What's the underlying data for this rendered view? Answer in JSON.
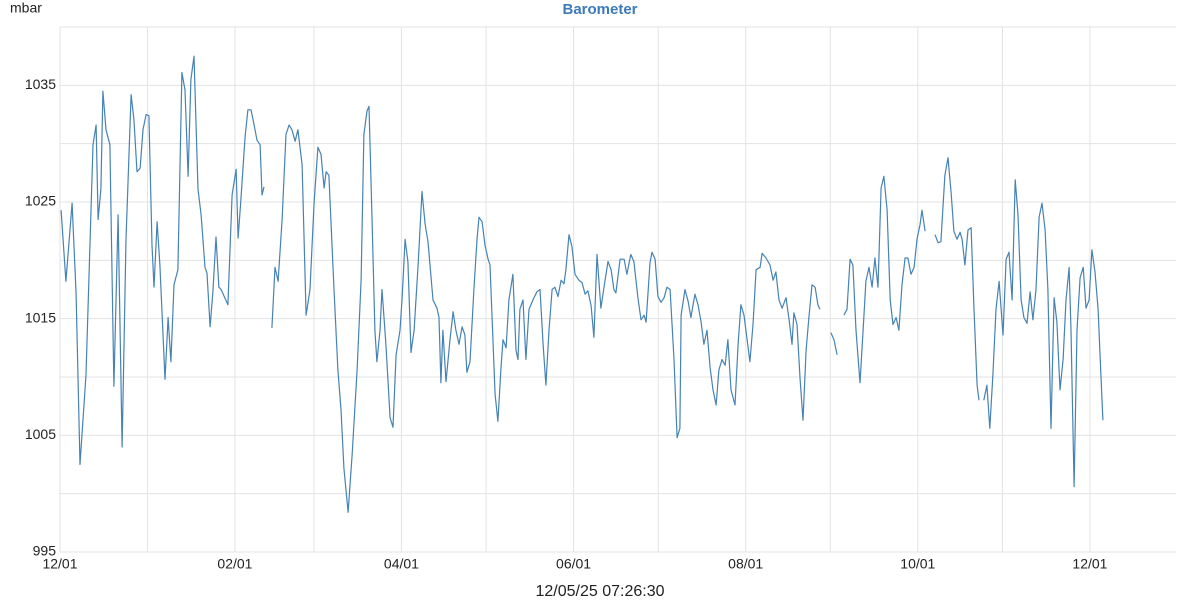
{
  "chart_data": {
    "type": "line",
    "title": "Barometer",
    "y_label": "mbar",
    "timestamp": "12/05/25 07:26:30",
    "color": "#4682b4",
    "grid": true,
    "xlim": [
      0,
      395.5
    ],
    "ylim": [
      995,
      1040
    ],
    "yticks": [
      995,
      1005,
      1015,
      1025,
      1035
    ],
    "minor_yticks": [
      1000,
      1010,
      1020,
      1030,
      1040
    ],
    "xticks": [
      {
        "value": 0,
        "label": "12/01"
      },
      {
        "value": 62,
        "label": "02/01"
      },
      {
        "value": 121,
        "label": "04/01"
      },
      {
        "value": 182,
        "label": "06/01"
      },
      {
        "value": 243,
        "label": "08/01"
      },
      {
        "value": 304,
        "label": "10/01"
      },
      {
        "value": 365,
        "label": "12/01"
      }
    ],
    "minor_xticks": [
      31,
      90,
      151,
      212,
      273,
      334
    ],
    "x": [
      0.4,
      2.1,
      4.3,
      5.7,
      7.1,
      9.2,
      11.7,
      12.8,
      13.5,
      14.5,
      15.2,
      16.3,
      17.7,
      19.1,
      20.6,
      22.0,
      23.4,
      25.2,
      26.2,
      27.3,
      28.4,
      29.4,
      30.5,
      31.5,
      32.6,
      33.3,
      34.4,
      35.4,
      37.2,
      38.3,
      39.3,
      40.4,
      41.8,
      43.2,
      44.3,
      45.4,
      46.4,
      47.5,
      48.9,
      50.0,
      51.4,
      52.1,
      53.2,
      54.2,
      55.3,
      56.3,
      57.1,
      59.5,
      61.0,
      62.4,
      63.1,
      64.1,
      65.6,
      66.6,
      67.7,
      68.8,
      69.8,
      70.9,
      71.6,
      72.3,
      73.7,
      75.1,
      76.2,
      77.3,
      78.7,
      80.1,
      81.2,
      82.2,
      83.3,
      84.3,
      85.8,
      87.2,
      88.6,
      90.0,
      91.4,
      92.5,
      93.6,
      94.3,
      95.3,
      97.1,
      98.5,
      99.6,
      100.6,
      102.1,
      103.5,
      105.3,
      106.7,
      107.7,
      108.8,
      109.5,
      110.6,
      111.6,
      112.3,
      113.4,
      114.1,
      115.5,
      117.0,
      118.0,
      119.1,
      120.5,
      121.2,
      122.3,
      123.3,
      124.4,
      125.5,
      126.9,
      128.3,
      129.4,
      130.4,
      132.2,
      133.6,
      134.3,
      135.0,
      135.7,
      136.8,
      138.2,
      139.3,
      140.3,
      141.4,
      142.5,
      143.5,
      144.2,
      145.3,
      146.7,
      147.8,
      148.5,
      149.6,
      150.6,
      151.7,
      152.4,
      154.2,
      155.2,
      156.3,
      157.0,
      158.1,
      159.1,
      160.5,
      161.6,
      162.3,
      163.0,
      164.1,
      165.1,
      166.2,
      167.6,
      169.0,
      170.1,
      171.2,
      172.2,
      173.3,
      174.4,
      175.4,
      176.5,
      177.6,
      178.6,
      179.3,
      180.4,
      181.4,
      182.5,
      183.9,
      185.0,
      186.1,
      187.1,
      188.2,
      189.2,
      190.3,
      191.7,
      193.1,
      194.2,
      195.3,
      196.3,
      197.0,
      198.5,
      199.9,
      200.9,
      202.3,
      203.4,
      204.8,
      205.9,
      207.0,
      207.7,
      209.1,
      209.8,
      210.9,
      211.9,
      213.0,
      214.1,
      215.1,
      216.2,
      217.6,
      218.7,
      219.7,
      220.1,
      221.5,
      222.6,
      223.6,
      225.0,
      226.1,
      227.2,
      228.2,
      229.3,
      230.4,
      231.4,
      232.5,
      233.5,
      234.6,
      235.7,
      236.7,
      237.8,
      239.2,
      240.3,
      241.3,
      242.4,
      243.5,
      244.5,
      245.6,
      246.7,
      248.1,
      248.8,
      250.2,
      251.6,
      252.7,
      253.7,
      254.8,
      255.9,
      257.3,
      258.4,
      259.4,
      260.1,
      261.2,
      262.3,
      263.3,
      264.4,
      265.4,
      266.5,
      267.6,
      268.6,
      269.3,
      271.2,
      273.2,
      274.3,
      275.4,
      276.6,
      277.8,
      278.9,
      280.0,
      281.0,
      282.1,
      283.5,
      284.6,
      285.6,
      286.7,
      287.8,
      288.8,
      289.9,
      291.0,
      292.0,
      293.1,
      294.2,
      295.2,
      296.3,
      297.3,
      298.4,
      299.5,
      300.5,
      301.6,
      302.7,
      303.7,
      304.8,
      305.5,
      306.6,
      308.3,
      310.1,
      311.2,
      312.2,
      313.6,
      314.7,
      315.8,
      316.8,
      317.9,
      319.0,
      319.7,
      320.7,
      321.8,
      322.9,
      323.9,
      325.0,
      325.7,
      326.5,
      327.4,
      328.5,
      329.5,
      330.6,
      331.7,
      332.8,
      334.2,
      335.3,
      336.3,
      337.4,
      338.5,
      339.5,
      340.6,
      341.6,
      342.7,
      343.8,
      344.8,
      345.9,
      347.0,
      348.0,
      349.1,
      350.1,
      351.2,
      352.3,
      353.3,
      354.4,
      355.5,
      356.5,
      357.6,
      358.3,
      359.4,
      360.4,
      361.5,
      362.6,
      363.6,
      364.7,
      365.7,
      366.8,
      367.9,
      368.9,
      369.6
    ],
    "values": [
      1024.3,
      1018.2,
      1024.9,
      1017.1,
      1002.5,
      1010.2,
      1029.9,
      1031.6,
      1023.5,
      1026.1,
      1034.5,
      1031.2,
      1029.9,
      1009.2,
      1023.9,
      1004.0,
      1021.8,
      1034.2,
      1032.1,
      1027.6,
      1027.9,
      1031.2,
      1032.5,
      1032.4,
      1021.3,
      1017.7,
      1023.3,
      1019.6,
      1009.8,
      1015.1,
      1011.3,
      1017.9,
      1019.2,
      1036.1,
      1034.6,
      1027.2,
      1035.5,
      1037.5,
      1026.1,
      1023.9,
      1019.4,
      1018.9,
      1014.3,
      1017.3,
      1022.0,
      1017.7,
      1017.5,
      1016.2,
      1025.6,
      1027.8,
      1021.9,
      1025.2,
      1030.6,
      1032.9,
      1032.9,
      1031.6,
      1030.3,
      1029.9,
      1025.6,
      1026.3,
      null,
      1014.2,
      1019.4,
      1018.2,
      1023.5,
      1030.8,
      1031.6,
      1031.2,
      1030.2,
      1031.2,
      1028.2,
      1015.3,
      1017.5,
      1024.8,
      1029.7,
      1029.1,
      1026.2,
      1027.6,
      1027.3,
      1017.5,
      1010.6,
      1007.2,
      1002.2,
      998.4,
      1003.3,
      1010.6,
      1018.3,
      1030.8,
      1032.8,
      1033.2,
      1023.3,
      1014.0,
      1011.3,
      1014.0,
      1017.5,
      1012.8,
      1006.5,
      1005.7,
      1011.9,
      1014.0,
      1016.6,
      1021.8,
      1019.9,
      1012.1,
      1014.0,
      1019.6,
      1025.9,
      1023.1,
      1021.6,
      1016.6,
      1015.9,
      1015.1,
      1009.5,
      1014.0,
      1009.6,
      1013.2,
      1015.6,
      1014.0,
      1012.8,
      1014.3,
      1013.6,
      1010.4,
      1011.3,
      1017.5,
      1021.9,
      1023.7,
      1023.3,
      1021.3,
      1020.1,
      1019.6,
      1008.5,
      1006.2,
      1010.8,
      1013.2,
      1012.5,
      1016.6,
      1018.8,
      1012.3,
      1011.5,
      1015.8,
      1016.6,
      1011.5,
      1015.8,
      1016.6,
      1017.3,
      1017.5,
      1012.8,
      1009.3,
      1014.0,
      1017.5,
      1017.7,
      1016.9,
      1018.3,
      1018.0,
      1019.2,
      1022.2,
      1021.2,
      1018.8,
      1018.3,
      1018.1,
      1017.1,
      1017.4,
      1016.1,
      1013.4,
      1020.5,
      1015.9,
      1018.2,
      1019.9,
      1019.2,
      1017.5,
      1017.2,
      1020.1,
      1020.1,
      1018.8,
      1020.5,
      1019.9,
      1016.8,
      1014.9,
      1015.3,
      1014.7,
      1019.8,
      1020.7,
      1020.1,
      1016.9,
      1016.4,
      1016.8,
      1017.7,
      1017.5,
      1011.5,
      1004.8,
      1005.6,
      1015.3,
      1017.5,
      1016.5,
      1015.1,
      1017.1,
      1016.2,
      1014.7,
      1012.8,
      1014.0,
      1010.8,
      1008.9,
      1007.6,
      1010.6,
      1011.5,
      1011.0,
      1013.2,
      1008.9,
      1007.6,
      1012.8,
      1016.2,
      1015.3,
      1013.2,
      1011.3,
      1014.5,
      1019.2,
      1019.4,
      1020.6,
      1020.2,
      1019.6,
      1018.3,
      1019.0,
      1016.6,
      1015.9,
      1016.8,
      1014.9,
      1012.8,
      1015.5,
      1014.5,
      1009.8,
      1006.3,
      1012.3,
      1015.1,
      1017.9,
      1017.7,
      1016.2,
      1015.8,
      null,
      1013.8,
      1013.2,
      1011.9,
      null,
      1015.3,
      1015.8,
      1020.1,
      1019.6,
      1014.0,
      1009.5,
      1014.0,
      1018.2,
      1019.4,
      1017.7,
      1020.2,
      1017.7,
      1026.2,
      1027.2,
      1024.3,
      1016.6,
      1014.5,
      1015.1,
      1014.0,
      1017.9,
      1020.2,
      1020.2,
      1018.8,
      1019.4,
      1021.8,
      1023.1,
      1024.3,
      1022.5,
      null,
      1022.2,
      1021.5,
      1021.6,
      1027.3,
      1028.8,
      1025.8,
      1022.5,
      1021.8,
      1022.4,
      1021.8,
      1019.6,
      1022.6,
      1022.8,
      1015.8,
      1009.3,
      1008.0,
      null,
      1008.0,
      1009.3,
      1005.6,
      1010.2,
      1015.8,
      1018.2,
      1013.6,
      1020.1,
      1020.7,
      1016.6,
      1026.9,
      1023.9,
      1016.6,
      1015.1,
      1014.6,
      1017.3,
      1014.9,
      1017.5,
      1023.7,
      1024.9,
      1022.6,
      1017.5,
      1005.6,
      1016.8,
      1014.7,
      1008.9,
      1011.5,
      1016.6,
      1019.4,
      1014.0,
      1000.6,
      1014.0,
      1018.5,
      1019.4,
      1015.9,
      1016.6,
      1020.9,
      1019.0,
      1015.8,
      1010.2,
      1006.3
    ]
  }
}
